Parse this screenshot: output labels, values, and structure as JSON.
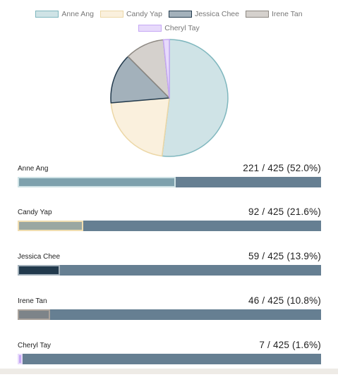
{
  "chart_data": {
    "type": "pie",
    "total": 425,
    "legend_position": "top",
    "categories": [
      "Anne Ang",
      "Candy Yap",
      "Jessica Chee",
      "Irene Tan",
      "Cheryl Tay"
    ],
    "values": [
      221,
      92,
      59,
      46,
      7
    ],
    "series_colors": [
      {
        "fill": "#cfe3e6",
        "stroke": "#7fb7be"
      },
      {
        "fill": "#faf0dd",
        "stroke": "#ecd7a6"
      },
      {
        "fill": "#a3b1bb",
        "stroke": "#223a4d"
      },
      {
        "fill": "#d5d1cd",
        "stroke": "#8d8882"
      },
      {
        "fill": "#e7dafb",
        "stroke": "#c6a8f5"
      }
    ]
  },
  "results": [
    {
      "name": "Anne Ang",
      "count_label": "221 / 425 (52.0%)",
      "fraction": 0.52
    },
    {
      "name": "Candy Yap",
      "count_label": "92 / 425 (21.6%)",
      "fraction": 0.216
    },
    {
      "name": "Jessica Chee",
      "count_label": "59 / 425 (13.9%)",
      "fraction": 0.139
    },
    {
      "name": "Irene Tan",
      "count_label": "46 / 425 (10.8%)",
      "fraction": 0.108
    },
    {
      "name": "Cheryl Tay",
      "count_label": "7 / 425 (1.6%)",
      "fraction": 0.016
    }
  ],
  "bar_colors": {
    "track": "#667f92",
    "fills": [
      {
        "fill": "#7ea1ad",
        "stroke": "#cfe3e6"
      },
      {
        "fill": "#9aa7a2",
        "stroke": "#f0ddb0"
      },
      {
        "fill": "#223a4d",
        "stroke": "#a3b1bb"
      },
      {
        "fill": "#7d8489",
        "stroke": "#a9a29b"
      },
      {
        "fill": "#c6a8f5",
        "stroke": "#e7dafb"
      }
    ]
  }
}
